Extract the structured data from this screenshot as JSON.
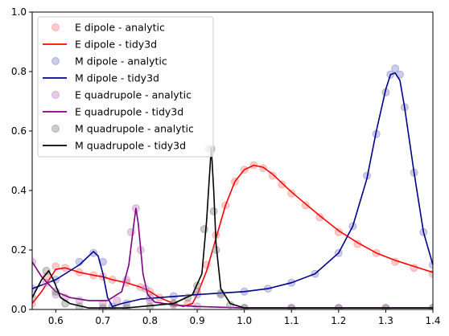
{
  "chart_data": {
    "type": "line",
    "title": "",
    "xlabel": "",
    "ylabel": "",
    "xlim": [
      0.55,
      1.4
    ],
    "ylim": [
      0.0,
      1.0
    ],
    "xticks": [
      0.6,
      0.7,
      0.8,
      0.9,
      1.0,
      1.1,
      1.2,
      1.3,
      1.4
    ],
    "xtick_labels": [
      "0.6",
      "0.7",
      "0.8",
      "0.9",
      "1.0",
      "1.1",
      "1.2",
      "1.3",
      "1.4"
    ],
    "yticks": [
      0.0,
      0.2,
      0.4,
      0.6,
      0.8,
      1.0
    ],
    "ytick_labels": [
      "0.0",
      "0.2",
      "0.4",
      "0.6",
      "0.8",
      "1.0"
    ],
    "grid": false,
    "legend_position": "top-left",
    "series": [
      {
        "name": "E dipole - analytic",
        "style": "markers",
        "color": "#ff7f7f",
        "x": [
          0.55,
          0.58,
          0.6,
          0.62,
          0.65,
          0.68,
          0.7,
          0.72,
          0.75,
          0.78,
          0.8,
          0.82,
          0.85,
          0.88,
          0.9,
          0.92,
          0.94,
          0.96,
          0.98,
          1.0,
          1.02,
          1.04,
          1.06,
          1.08,
          1.1,
          1.13,
          1.16,
          1.2,
          1.24,
          1.28,
          1.32,
          1.36,
          1.4
        ],
        "y": [
          0.02,
          0.11,
          0.145,
          0.14,
          0.125,
          0.115,
          0.11,
          0.1,
          0.09,
          0.075,
          0.06,
          0.04,
          0.02,
          0.02,
          0.06,
          0.15,
          0.25,
          0.35,
          0.43,
          0.47,
          0.485,
          0.475,
          0.45,
          0.42,
          0.39,
          0.35,
          0.31,
          0.26,
          0.22,
          0.19,
          0.16,
          0.14,
          0.12
        ]
      },
      {
        "name": "E dipole - tidy3d",
        "style": "line",
        "color": "#ff0000",
        "x": [
          0.55,
          0.57,
          0.59,
          0.6,
          0.62,
          0.65,
          0.68,
          0.7,
          0.72,
          0.75,
          0.78,
          0.8,
          0.82,
          0.85,
          0.87,
          0.89,
          0.9,
          0.92,
          0.94,
          0.96,
          0.98,
          1.0,
          1.02,
          1.04,
          1.06,
          1.08,
          1.1,
          1.13,
          1.16,
          1.2,
          1.24,
          1.28,
          1.32,
          1.36,
          1.4
        ],
        "y": [
          0.02,
          0.06,
          0.11,
          0.135,
          0.14,
          0.125,
          0.115,
          0.11,
          0.1,
          0.09,
          0.075,
          0.06,
          0.04,
          0.02,
          0.01,
          0.02,
          0.05,
          0.13,
          0.24,
          0.35,
          0.43,
          0.47,
          0.485,
          0.478,
          0.455,
          0.425,
          0.395,
          0.355,
          0.315,
          0.265,
          0.225,
          0.19,
          0.165,
          0.145,
          0.125
        ]
      },
      {
        "name": "M dipole - analytic",
        "style": "markers",
        "color": "#7f7fcc",
        "x": [
          0.55,
          0.6,
          0.65,
          0.68,
          0.7,
          0.72,
          0.75,
          0.8,
          0.85,
          0.9,
          0.95,
          1.0,
          1.05,
          1.1,
          1.15,
          1.2,
          1.23,
          1.26,
          1.28,
          1.3,
          1.31,
          1.32,
          1.33,
          1.34,
          1.36,
          1.38,
          1.4
        ],
        "y": [
          0.07,
          0.1,
          0.16,
          0.19,
          0.16,
          0.01,
          0.02,
          0.04,
          0.045,
          0.05,
          0.055,
          0.06,
          0.07,
          0.09,
          0.12,
          0.19,
          0.28,
          0.45,
          0.59,
          0.73,
          0.79,
          0.81,
          0.79,
          0.68,
          0.46,
          0.26,
          0.15
        ]
      },
      {
        "name": "M dipole - tidy3d",
        "style": "line",
        "color": "#00008b",
        "x": [
          0.55,
          0.6,
          0.65,
          0.68,
          0.69,
          0.7,
          0.71,
          0.72,
          0.74,
          0.78,
          0.82,
          0.86,
          0.9,
          0.95,
          1.0,
          1.05,
          1.1,
          1.15,
          1.2,
          1.23,
          1.26,
          1.28,
          1.3,
          1.31,
          1.32,
          1.33,
          1.34,
          1.36,
          1.38,
          1.4
        ],
        "y": [
          0.07,
          0.1,
          0.15,
          0.195,
          0.18,
          0.12,
          0.04,
          0.01,
          0.02,
          0.035,
          0.04,
          0.045,
          0.05,
          0.055,
          0.06,
          0.07,
          0.09,
          0.12,
          0.19,
          0.28,
          0.44,
          0.6,
          0.74,
          0.79,
          0.795,
          0.77,
          0.68,
          0.46,
          0.26,
          0.15
        ]
      },
      {
        "name": "E quadrupole - analytic",
        "style": "markers",
        "color": "#bf7fbf",
        "x": [
          0.55,
          0.58,
          0.6,
          0.62,
          0.65,
          0.7,
          0.73,
          0.75,
          0.76,
          0.77,
          0.78,
          0.79,
          0.8,
          0.85,
          0.9,
          1.0,
          1.1,
          1.2,
          1.3,
          1.4
        ],
        "y": [
          0.16,
          0.09,
          0.05,
          0.04,
          0.03,
          0.02,
          0.03,
          0.1,
          0.26,
          0.34,
          0.2,
          0.07,
          0.03,
          0.015,
          0.01,
          0.005,
          0.005,
          0.005,
          0.005,
          0.005
        ]
      },
      {
        "name": "E quadrupole - tidy3d",
        "style": "line",
        "color": "#800080",
        "x": [
          0.55,
          0.57,
          0.6,
          0.63,
          0.67,
          0.71,
          0.74,
          0.755,
          0.765,
          0.77,
          0.775,
          0.785,
          0.795,
          0.81,
          0.85,
          0.9,
          1.0,
          1.1,
          1.2,
          1.3,
          1.4
        ],
        "y": [
          0.16,
          0.11,
          0.06,
          0.04,
          0.03,
          0.03,
          0.06,
          0.15,
          0.28,
          0.34,
          0.29,
          0.12,
          0.05,
          0.025,
          0.015,
          0.01,
          0.005,
          0.005,
          0.005,
          0.005,
          0.005
        ]
      },
      {
        "name": "M quadrupole - analytic",
        "style": "markers",
        "color": "#7f7f7f",
        "x": [
          0.55,
          0.58,
          0.6,
          0.62,
          0.65,
          0.7,
          0.75,
          0.8,
          0.85,
          0.88,
          0.9,
          0.915,
          0.925,
          0.93,
          0.935,
          0.94,
          0.95,
          0.97,
          1.0,
          1.1,
          1.2,
          1.3,
          1.4
        ],
        "y": [
          0.04,
          0.13,
          0.06,
          0.02,
          0.01,
          0.005,
          0.005,
          0.01,
          0.02,
          0.04,
          0.08,
          0.27,
          0.54,
          0.54,
          0.33,
          0.2,
          0.05,
          0.015,
          0.005,
          0.005,
          0.005,
          0.005,
          0.005
        ]
      },
      {
        "name": "M quadrupole - tidy3d",
        "style": "line",
        "color": "#000000",
        "x": [
          0.55,
          0.57,
          0.585,
          0.595,
          0.61,
          0.63,
          0.67,
          0.75,
          0.85,
          0.89,
          0.91,
          0.92,
          0.928,
          0.93,
          0.935,
          0.94,
          0.95,
          0.97,
          1.0,
          1.2,
          1.4
        ],
        "y": [
          0.04,
          0.1,
          0.13,
          0.1,
          0.04,
          0.02,
          0.005,
          0.005,
          0.02,
          0.05,
          0.12,
          0.3,
          0.5,
          0.545,
          0.4,
          0.22,
          0.07,
          0.02,
          0.005,
          0.005,
          0.005
        ]
      }
    ]
  }
}
